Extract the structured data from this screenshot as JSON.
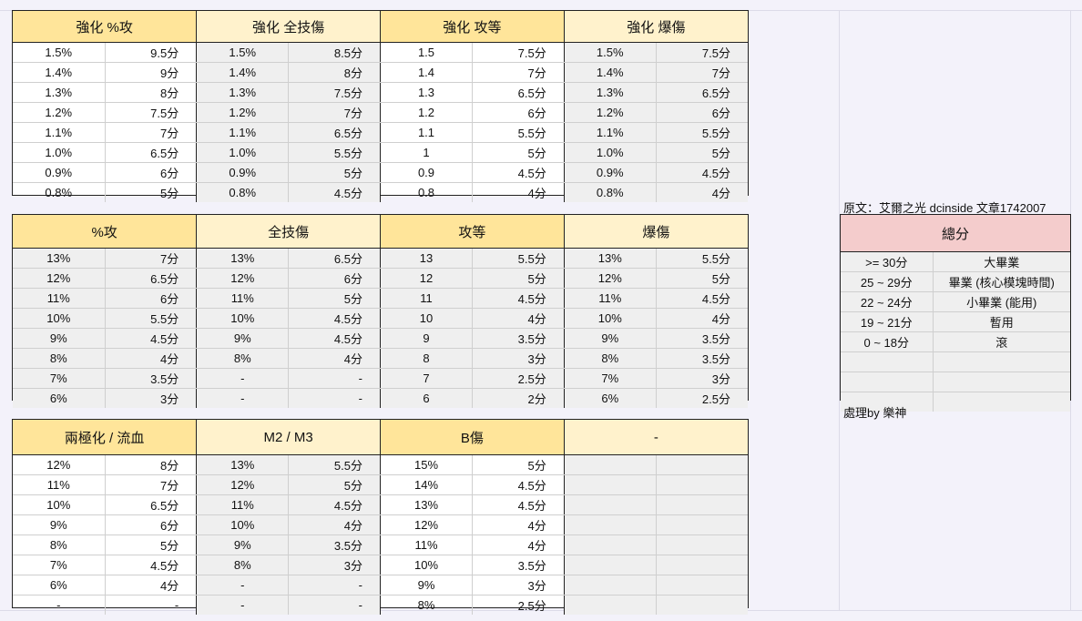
{
  "block1": {
    "headers": [
      "強化 %攻",
      "強化 全技傷",
      "強化 攻等",
      "強化 爆傷"
    ],
    "rows": [
      [
        "1.5%",
        "9.5分",
        "1.5%",
        "8.5分",
        "1.5",
        "7.5分",
        "1.5%",
        "7.5分"
      ],
      [
        "1.4%",
        "9分",
        "1.4%",
        "8分",
        "1.4",
        "7分",
        "1.4%",
        "7分"
      ],
      [
        "1.3%",
        "8分",
        "1.3%",
        "7.5分",
        "1.3",
        "6.5分",
        "1.3%",
        "6.5分"
      ],
      [
        "1.2%",
        "7.5分",
        "1.2%",
        "7分",
        "1.2",
        "6分",
        "1.2%",
        "6分"
      ],
      [
        "1.1%",
        "7分",
        "1.1%",
        "6.5分",
        "1.1",
        "5.5分",
        "1.1%",
        "5.5分"
      ],
      [
        "1.0%",
        "6.5分",
        "1.0%",
        "5.5分",
        "1",
        "5分",
        "1.0%",
        "5分"
      ],
      [
        "0.9%",
        "6分",
        "0.9%",
        "5分",
        "0.9",
        "4.5分",
        "0.9%",
        "4.5分"
      ],
      [
        "0.8%",
        "5分",
        "0.8%",
        "4.5分",
        "0.8",
        "4分",
        "0.8%",
        "4分"
      ]
    ]
  },
  "block2": {
    "headers": [
      "%攻",
      "全技傷",
      "攻等",
      "爆傷"
    ],
    "rows": [
      [
        "13%",
        "7分",
        "13%",
        "6.5分",
        "13",
        "5.5分",
        "13%",
        "5.5分"
      ],
      [
        "12%",
        "6.5分",
        "12%",
        "6分",
        "12",
        "5分",
        "12%",
        "5分"
      ],
      [
        "11%",
        "6分",
        "11%",
        "5分",
        "11",
        "4.5分",
        "11%",
        "4.5分"
      ],
      [
        "10%",
        "5.5分",
        "10%",
        "4.5分",
        "10",
        "4分",
        "10%",
        "4分"
      ],
      [
        "9%",
        "4.5分",
        "9%",
        "4.5分",
        "9",
        "3.5分",
        "9%",
        "3.5分"
      ],
      [
        "8%",
        "4分",
        "8%",
        "4分",
        "8",
        "3分",
        "8%",
        "3.5分"
      ],
      [
        "7%",
        "3.5分",
        "-",
        "-",
        "7",
        "2.5分",
        "7%",
        "3分"
      ],
      [
        "6%",
        "3分",
        "-",
        "-",
        "6",
        "2分",
        "6%",
        "2.5分"
      ]
    ]
  },
  "block3": {
    "headers": [
      "兩極化 / 流血",
      "M2 / M3",
      "B傷",
      "-"
    ],
    "rows": [
      [
        "12%",
        "8分",
        "13%",
        "5.5分",
        "15%",
        "5分",
        "",
        ""
      ],
      [
        "11%",
        "7分",
        "12%",
        "5分",
        "14%",
        "4.5分",
        "",
        ""
      ],
      [
        "10%",
        "6.5分",
        "11%",
        "4.5分",
        "13%",
        "4.5分",
        "",
        ""
      ],
      [
        "9%",
        "6分",
        "10%",
        "4分",
        "12%",
        "4分",
        "",
        ""
      ],
      [
        "8%",
        "5分",
        "9%",
        "3.5分",
        "11%",
        "4分",
        "",
        ""
      ],
      [
        "7%",
        "4.5分",
        "8%",
        "3分",
        "10%",
        "3.5分",
        "",
        ""
      ],
      [
        "6%",
        "4分",
        "-",
        "-",
        "9%",
        "3分",
        "",
        ""
      ],
      [
        "-",
        "-",
        "-",
        "-",
        "8%",
        "2.5分",
        "",
        ""
      ]
    ]
  },
  "source_note": "原文：艾爾之光 dcinside 文章1742007",
  "summary": {
    "header": "總分",
    "rows": [
      [
        ">= 30分",
        "大畢業"
      ],
      [
        "25 ~ 29分",
        "畢業 (核心模塊時間)"
      ],
      [
        "22 ~ 24分",
        "小畢業 (能用)"
      ],
      [
        "19 ~ 21分",
        "暫用"
      ],
      [
        "0 ~ 18分",
        "滾"
      ],
      [
        "",
        ""
      ],
      [
        "",
        ""
      ],
      [
        "",
        ""
      ]
    ]
  },
  "credit_note": "處理by 樂神",
  "colors": {
    "header_strong": "#ffe59a",
    "header_light": "#fff2cc",
    "summary_header": "#f4cccc",
    "shaded_cell": "#efefef"
  }
}
